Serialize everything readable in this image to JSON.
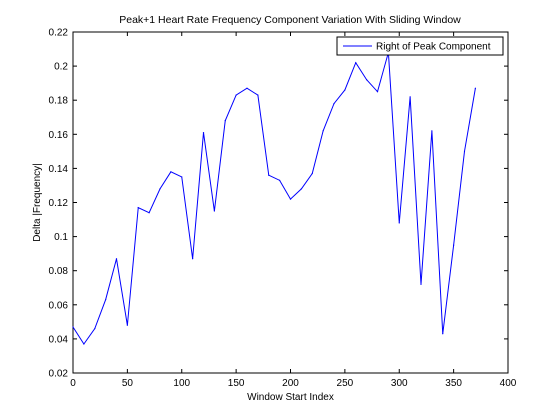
{
  "chart_data": {
    "type": "line",
    "title": "Peak+1 Heart Rate Frequency Component Variation With Sliding Window",
    "xlabel": "Window Start Index",
    "ylabel": "Delta |Frequency|",
    "xlim": [
      0,
      400
    ],
    "ylim": [
      0.02,
      0.22
    ],
    "xticks": [
      0,
      50,
      100,
      150,
      200,
      250,
      300,
      350,
      400
    ],
    "xtick_labels": [
      "0",
      "50",
      "100",
      "150",
      "200",
      "250",
      "300",
      "350",
      "400"
    ],
    "yticks": [
      0.02,
      0.04,
      0.06,
      0.08,
      0.1,
      0.12,
      0.14,
      0.16,
      0.18,
      0.2,
      0.22
    ],
    "ytick_labels": [
      "0.02",
      "0.04",
      "0.06",
      "0.08",
      "0.1",
      "0.12",
      "0.14",
      "0.16",
      "0.18",
      "0.2",
      "0.22"
    ],
    "grid": false,
    "legend_position": "top-right",
    "series": [
      {
        "name": "Right of Peak Component",
        "color": "#0000ff",
        "x": [
          0,
          10,
          20,
          30,
          40,
          50,
          60,
          70,
          80,
          90,
          100,
          110,
          120,
          130,
          140,
          150,
          160,
          170,
          180,
          190,
          200,
          210,
          220,
          230,
          240,
          250,
          260,
          270,
          280,
          290,
          300,
          310,
          320,
          330,
          340,
          350,
          360,
          370
        ],
        "y": [
          0.047,
          0.037,
          0.046,
          0.063,
          0.087,
          0.048,
          0.117,
          0.114,
          0.128,
          0.138,
          0.135,
          0.087,
          0.161,
          0.115,
          0.168,
          0.183,
          0.187,
          0.183,
          0.136,
          0.133,
          0.122,
          0.128,
          0.137,
          0.162,
          0.178,
          0.186,
          0.202,
          0.192,
          0.185,
          0.208,
          0.108,
          0.182,
          0.072,
          0.162,
          0.043,
          0.095,
          0.15,
          0.187
        ]
      }
    ]
  }
}
